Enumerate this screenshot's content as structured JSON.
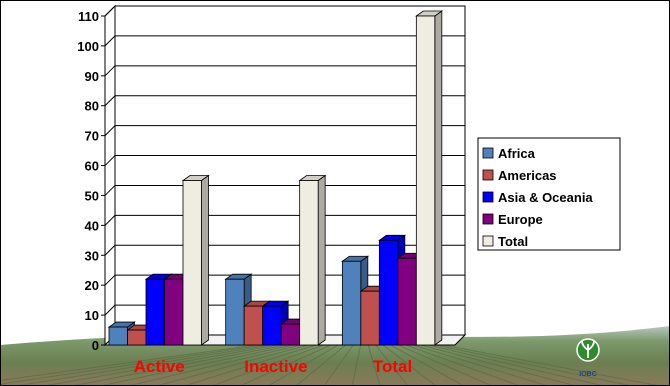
{
  "chart_data": {
    "type": "bar",
    "style": "3d-clustered",
    "categories": [
      "Active",
      "Inactive",
      "Total"
    ],
    "series": [
      {
        "name": "Africa",
        "values": [
          6,
          22,
          28
        ],
        "color": "#4f81bd"
      },
      {
        "name": "Americas",
        "values": [
          5,
          13,
          18
        ],
        "color": "#c0504d"
      },
      {
        "name": "Asia & Oceania",
        "values": [
          22,
          13,
          35
        ],
        "color": "#0000ff"
      },
      {
        "name": "Europe",
        "values": [
          22,
          7,
          29
        ],
        "color": "#800080"
      },
      {
        "name": "Total",
        "values": [
          55,
          55,
          110
        ],
        "color": "#efece1"
      }
    ],
    "ylim": [
      0,
      110
    ],
    "yticks": [
      "0",
      "10",
      "20",
      "30",
      "40",
      "50",
      "60",
      "70",
      "80",
      "90",
      "100",
      "110"
    ],
    "grid": true,
    "legend": "right",
    "category_label_color": "#ff0000"
  },
  "background": {
    "theme": "farm-field-landscape",
    "logo_icon": "plant-emblem-icon",
    "logo_text": "IOBC"
  }
}
